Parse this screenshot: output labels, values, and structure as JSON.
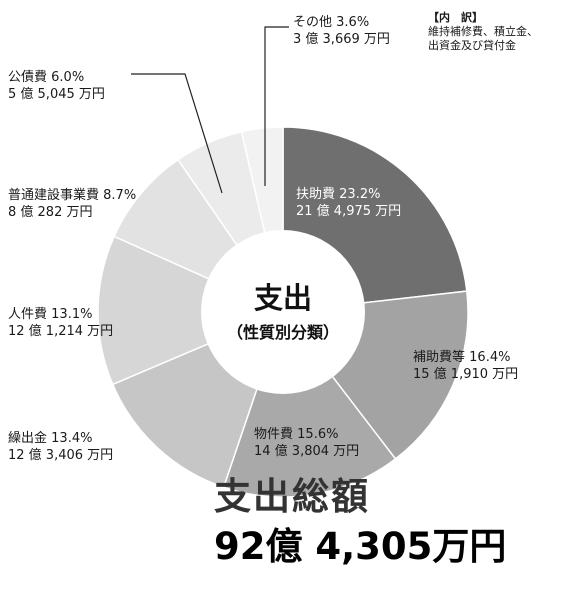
{
  "chart_data": {
    "type": "pie",
    "title": "支出",
    "subtitle": "（性質別分類）",
    "slices": [
      {
        "label": "扶助費",
        "percent": 23.2,
        "amount": "21億4,975万円",
        "pct_text": "23.2%",
        "amt_text": "21 億 4,975 万円",
        "color": "#6f6f6f"
      },
      {
        "label": "補助費等",
        "percent": 16.4,
        "amount": "15億1,910万円",
        "pct_text": "16.4%",
        "amt_text": "15 億 1,910 万円",
        "color": "#a3a3a3"
      },
      {
        "label": "物件費",
        "percent": 15.6,
        "amount": "14億3,804万円",
        "pct_text": "15.6%",
        "amt_text": "14 億 3,804 万円",
        "color": "#a9a9a9"
      },
      {
        "label": "繰出金",
        "percent": 13.4,
        "amount": "12億3,406万円",
        "pct_text": "13.4%",
        "amt_text": "12 億 3,406 万円",
        "color": "#c6c6c6"
      },
      {
        "label": "人件費",
        "percent": 13.1,
        "amount": "12億1,214万円",
        "pct_text": "13.1%",
        "amt_text": "12 億 1,214 万円",
        "color": "#d6d6d6"
      },
      {
        "label": "普通建設事業費",
        "percent": 8.7,
        "amount": "8億282万円",
        "pct_text": "8.7%",
        "amt_text": "8 億 282 万円",
        "color": "#e2e2e2"
      },
      {
        "label": "公債費",
        "percent": 6.0,
        "amount": "5億5,045万円",
        "pct_text": "6.0%",
        "amt_text": "5 億 5,045 万円",
        "color": "#ebebeb"
      },
      {
        "label": "その他",
        "percent": 3.6,
        "amount": "3億3,669万円",
        "pct_text": "3.6%",
        "amt_text": "3 億 3,669 万円",
        "color": "#f2f2f2"
      }
    ],
    "note_title": "【内　訳】",
    "note_lines": [
      "維持補修費、積立金、",
      "出資金及び貸付金"
    ],
    "total_label": "支出総額",
    "total_value": "92億 4,305万円"
  }
}
